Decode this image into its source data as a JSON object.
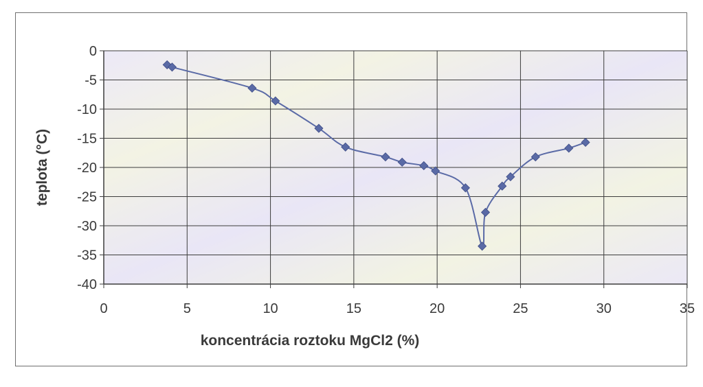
{
  "chart_data": {
    "type": "scatter",
    "title": "",
    "xlabel": "koncentrácia roztoku MgCl2 (%)",
    "ylabel": "teplota (°C)",
    "xlim": [
      0,
      35
    ],
    "ylim": [
      -40,
      0
    ],
    "x_ticks": [
      0,
      5,
      10,
      15,
      20,
      25,
      30,
      35
    ],
    "y_ticks": [
      0,
      -5,
      -10,
      -15,
      -20,
      -25,
      -30,
      -35,
      -40
    ],
    "grid": true,
    "legend": "none",
    "series": [
      {
        "x": [
          3.8,
          4.1,
          8.9,
          10.3,
          12.9,
          14.5,
          16.9,
          17.9,
          19.2,
          19.9,
          21.7,
          22.7,
          22.9,
          23.9,
          24.4,
          25.9,
          27.9,
          28.9
        ],
        "y": [
          -2.4,
          -2.8,
          -6.4,
          -8.6,
          -13.3,
          -16.5,
          -18.2,
          -19.1,
          -19.7,
          -20.6,
          -23.5,
          -33.5,
          -27.7,
          -23.2,
          -21.6,
          -18.2,
          -16.7,
          -15.7
        ],
        "color": "#5a6aa6"
      }
    ]
  }
}
